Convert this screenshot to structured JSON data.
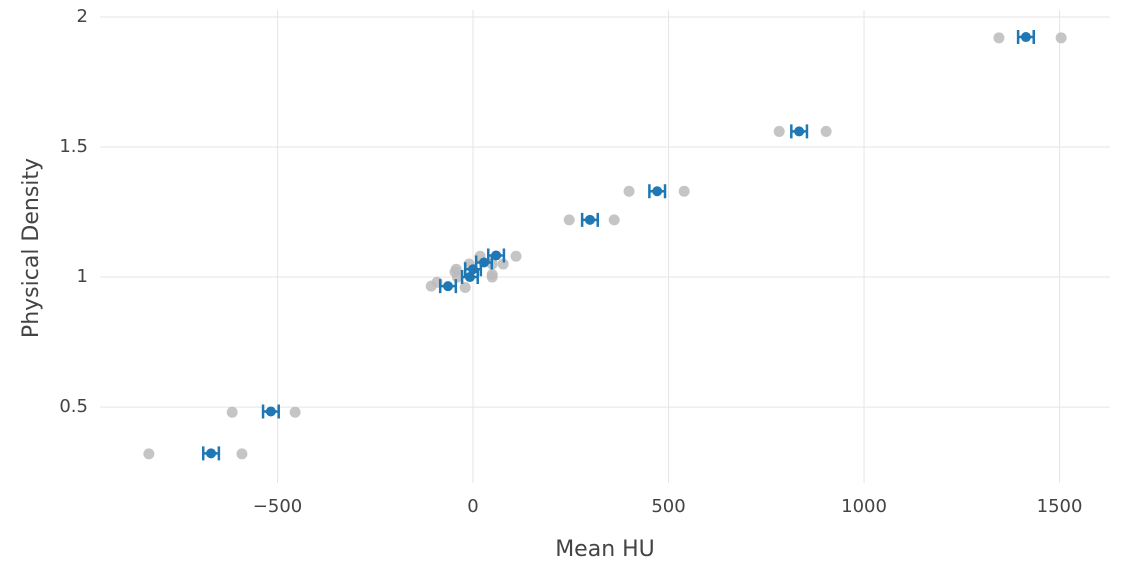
{
  "chart_data": {
    "type": "scatter",
    "x_label": "Mean HU",
    "y_label": "Physical Density",
    "xlim": [
      -954,
      1629
    ],
    "ylim": [
      0.208,
      2.027
    ],
    "xticks": [
      {
        "value": -500,
        "label": "−500"
      },
      0,
      500,
      1000,
      1500
    ],
    "yticks": [
      0.5,
      1,
      1.5,
      2
    ],
    "grid": true,
    "series": [
      {
        "color": "#bbbbbb",
        "x": [
          -829,
          -591,
          -616,
          -455,
          1345,
          1504,
          783,
          903,
          399,
          540,
          246,
          361,
          -107,
          -92,
          -46,
          -43,
          -40,
          -20,
          -10,
          18,
          49,
          49,
          49,
          77,
          110
        ],
        "values": [
          0.32,
          0.32,
          0.48,
          0.48,
          1.92,
          1.92,
          1.56,
          1.56,
          1.33,
          1.33,
          1.22,
          1.22,
          0.965,
          0.98,
          1.02,
          1.03,
          1.0,
          0.96,
          1.05,
          1.08,
          1.05,
          1.01,
          1.0,
          1.05,
          1.08
        ]
      },
      {
        "color": "#1f77b4",
        "x": [
          -670,
          -517,
          -64,
          -8,
          0,
          28,
          59,
          299,
          471,
          834,
          1414
        ],
        "values": [
          0.322,
          0.483,
          0.965,
          1.0,
          1.03,
          1.056,
          1.083,
          1.22,
          1.33,
          1.56,
          1.923
        ],
        "x_error": [
          20,
          20,
          20,
          20,
          20,
          20,
          20,
          20,
          20,
          20,
          20
        ]
      }
    ]
  }
}
